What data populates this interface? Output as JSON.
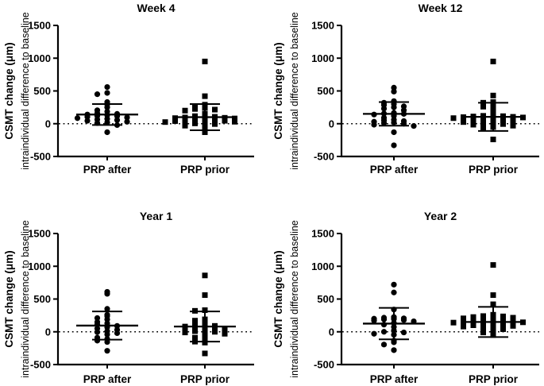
{
  "figure": {
    "background": "#ffffff",
    "ink": "#000000",
    "ylabel_bold": "CSMT change (μm)",
    "ylabel_regular": "intraindividual difference to baseline",
    "x_categories": [
      "PRP after",
      "PRP prior"
    ],
    "y_tick_labels": [
      "1500",
      "1000",
      "500",
      "0",
      "-500"
    ]
  },
  "chart_data": [
    {
      "type": "scatter",
      "title": "Week 4",
      "ylabel": "CSMT change (μm) intraindividual difference to baseline",
      "categories": [
        "PRP after",
        "PRP prior"
      ],
      "ylim": [
        -500,
        1500
      ],
      "y_ticks": [
        1500,
        1000,
        500,
        0,
        -500
      ],
      "zero_line": true,
      "legend": "none",
      "series": [
        {
          "name": "PRP after",
          "marker": "circle",
          "mean": 140,
          "sd": 160,
          "values": [
            560,
            470,
            450,
            330,
            295,
            250,
            205,
            185,
            160,
            150,
            140,
            130,
            120,
            115,
            105,
            95,
            85,
            75,
            65,
            55,
            45,
            30,
            20,
            10,
            -20,
            -130
          ]
        },
        {
          "name": "PRP prior",
          "marker": "square",
          "mean": 100,
          "sd": 200,
          "values": [
            950,
            420,
            290,
            265,
            240,
            225,
            215,
            200,
            150,
            130,
            115,
            105,
            95,
            90,
            85,
            80,
            70,
            60,
            55,
            50,
            45,
            40,
            30,
            25,
            15,
            5,
            -5,
            -30,
            -60,
            -130
          ]
        }
      ]
    },
    {
      "type": "scatter",
      "title": "Week 12",
      "ylabel": "CSMT change (μm) intraindividual difference to baseline",
      "categories": [
        "PRP after",
        "PRP prior"
      ],
      "ylim": [
        -500,
        1500
      ],
      "y_ticks": [
        1500,
        1000,
        500,
        0,
        -500
      ],
      "zero_line": true,
      "legend": "none",
      "series": [
        {
          "name": "PRP after",
          "marker": "circle",
          "mean": 150,
          "sd": 180,
          "values": [
            550,
            490,
            345,
            320,
            300,
            285,
            265,
            250,
            230,
            205,
            165,
            155,
            150,
            140,
            120,
            90,
            60,
            50,
            40,
            30,
            20,
            10,
            0,
            -15,
            -35,
            -130,
            -330
          ]
        },
        {
          "name": "PRP prior",
          "marker": "square",
          "mean": 105,
          "sd": 215,
          "values": [
            950,
            430,
            330,
            320,
            300,
            260,
            230,
            190,
            130,
            120,
            115,
            110,
            105,
            100,
            95,
            85,
            75,
            65,
            55,
            45,
            35,
            25,
            15,
            5,
            -5,
            -15,
            -30,
            -50,
            -70,
            -240
          ]
        }
      ]
    },
    {
      "type": "scatter",
      "title": "Year 1",
      "ylabel": "CSMT change (μm) intraindividual difference to baseline",
      "categories": [
        "PRP after",
        "PRP prior"
      ],
      "ylim": [
        -500,
        1500
      ],
      "y_ticks": [
        1500,
        1000,
        500,
        0,
        -500
      ],
      "zero_line": true,
      "legend": "none",
      "series": [
        {
          "name": "PRP after",
          "marker": "circle",
          "mean": 95,
          "sd": 215,
          "values": [
            610,
            580,
            350,
            260,
            240,
            210,
            190,
            150,
            130,
            110,
            90,
            70,
            50,
            30,
            10,
            -5,
            -20,
            -40,
            -90,
            -110,
            -135,
            -155,
            -290
          ]
        },
        {
          "name": "PRP prior",
          "marker": "square",
          "mean": 80,
          "sd": 230,
          "values": [
            860,
            560,
            330,
            320,
            190,
            170,
            120,
            100,
            90,
            80,
            70,
            60,
            50,
            40,
            30,
            20,
            10,
            0,
            -10,
            -30,
            -60,
            -90,
            -115,
            -150,
            -165,
            -330
          ]
        }
      ]
    },
    {
      "type": "scatter",
      "title": "Year 2",
      "ylabel": "CSMT change (μm) intraindividual difference to baseline",
      "categories": [
        "PRP after",
        "PRP prior"
      ],
      "ylim": [
        -500,
        1500
      ],
      "y_ticks": [
        1500,
        1000,
        500,
        0,
        -500
      ],
      "zero_line": true,
      "legend": "none",
      "series": [
        {
          "name": "PRP after",
          "marker": "circle",
          "mean": 125,
          "sd": 240,
          "values": [
            720,
            600,
            340,
            225,
            215,
            205,
            200,
            195,
            190,
            180,
            170,
            160,
            135,
            110,
            75,
            20,
            0,
            -10,
            -30,
            -45,
            -135,
            -160,
            -195,
            -280
          ]
        },
        {
          "name": "PRP prior",
          "marker": "square",
          "mean": 150,
          "sd": 230,
          "values": [
            1020,
            560,
            420,
            260,
            250,
            240,
            235,
            225,
            215,
            205,
            195,
            185,
            175,
            165,
            155,
            150,
            145,
            140,
            130,
            120,
            110,
            100,
            90,
            80,
            70,
            55,
            40,
            20,
            -10,
            -50
          ]
        }
      ]
    }
  ]
}
